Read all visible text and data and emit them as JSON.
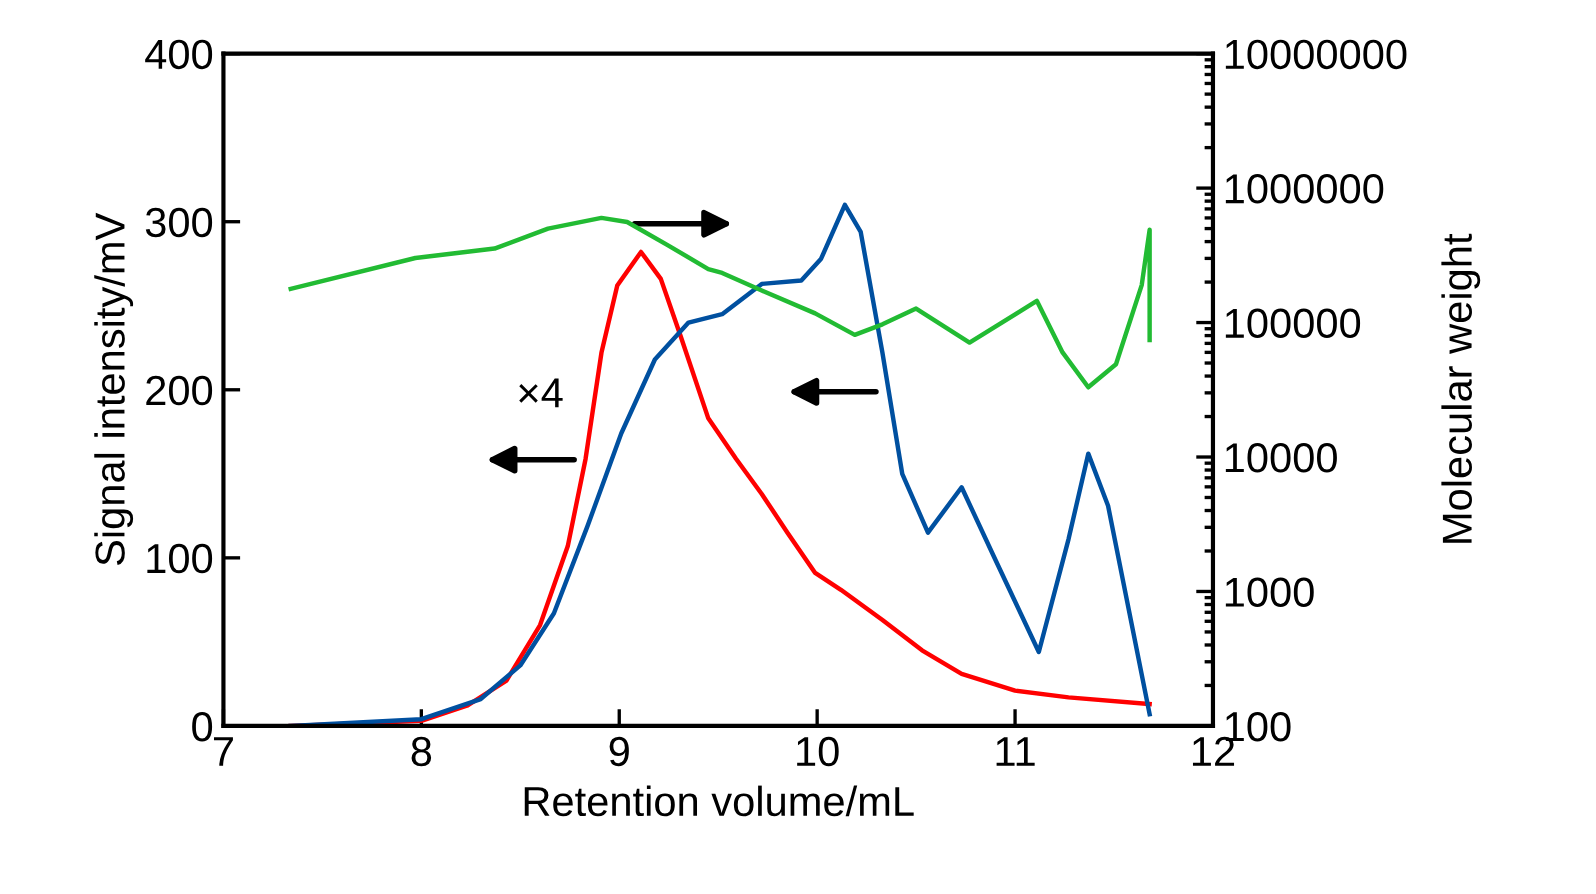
{
  "chart_data": {
    "type": "line",
    "xlabel": "Retention volume/mL",
    "ylabel": "Signal intensity/mV",
    "y2label": "Molecular weight",
    "xlim": [
      7,
      12
    ],
    "xticks": [
      7,
      8,
      9,
      10,
      11,
      12
    ],
    "ylim": [
      0,
      400
    ],
    "yticks": [
      0,
      100,
      200,
      300,
      400
    ],
    "y2lim": [
      100,
      10000000
    ],
    "y2ticks": [
      100,
      1000,
      10000,
      100000,
      1000000,
      10000000
    ],
    "log": "y2",
    "grid": false,
    "legend": false,
    "marker": "none",
    "line_style": "solid",
    "annotations": [
      "×4"
    ],
    "series": [
      {
        "color": "#ff0000",
        "x": [
          7.34,
          8.0,
          8.23,
          8.43,
          8.6,
          8.74,
          8.83,
          8.91,
          8.99,
          9.11,
          9.21,
          9.31,
          9.45,
          9.59,
          9.72,
          9.85,
          9.99,
          10.12,
          10.33,
          10.53,
          10.73,
          11.0,
          11.27,
          11.68
        ],
        "values": [
          0,
          3,
          12,
          27,
          60,
          107,
          159,
          222,
          262,
          282,
          266,
          232,
          183,
          159,
          138,
          115,
          91,
          81,
          63,
          45,
          31,
          21,
          17,
          13
        ]
      },
      {
        "color": "#0050a0",
        "x": [
          7.34,
          8.0,
          8.3,
          8.5,
          8.67,
          8.84,
          9.01,
          9.18,
          9.35,
          9.52,
          9.72,
          9.92,
          10.02,
          10.14,
          10.22,
          10.33,
          10.43,
          10.56,
          10.73,
          10.9,
          11.12,
          11.27,
          11.37,
          11.47,
          11.68
        ],
        "values": [
          0,
          4,
          16,
          36,
          67,
          119,
          174,
          218,
          240,
          245,
          263,
          265,
          278,
          310,
          294,
          222,
          150,
          115,
          142,
          99,
          44,
          111,
          162,
          131,
          7
        ]
      },
      {
        "color": "#22bb33",
        "axis": "y2",
        "x": [
          7.34,
          7.97,
          8.37,
          8.64,
          8.91,
          9.04,
          9.24,
          9.45,
          9.52,
          9.72,
          9.99,
          10.19,
          10.33,
          10.5,
          10.77,
          11.11,
          11.24,
          11.37,
          11.51,
          11.64,
          11.68,
          11.68
        ],
        "values": [
          178000,
          302000,
          355000,
          500000,
          600000,
          560000,
          380000,
          250000,
          234000,
          173000,
          117000,
          81000,
          97000,
          127000,
          71000,
          145000,
          60000,
          33000,
          49000,
          190000,
          490000,
          74000
        ]
      }
    ]
  }
}
